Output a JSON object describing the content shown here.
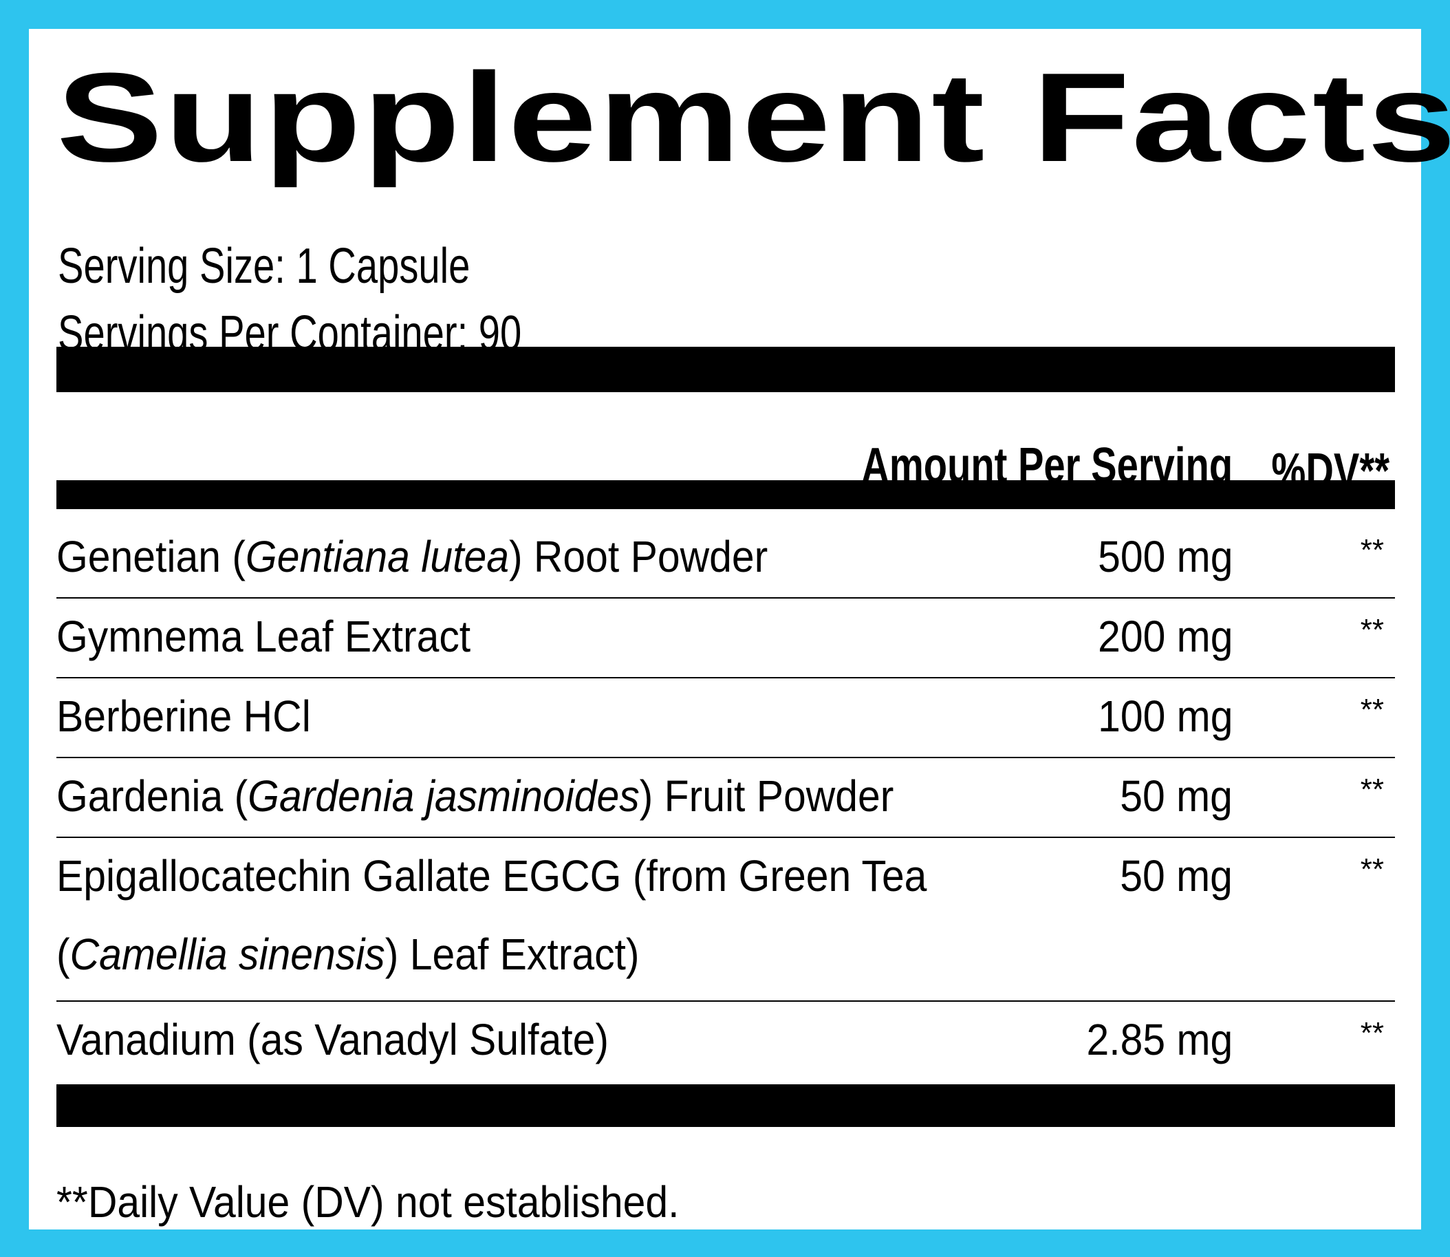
{
  "label": {
    "title": "Supplement Facts",
    "serving_size": "Serving Size: 1 Capsule",
    "servings_per_container": "Servings Per Container: 90",
    "header_amount": "Amount Per Serving",
    "header_dv": "%DV**",
    "footnote": "**Daily Value (DV) not established."
  },
  "ingredients": [
    {
      "name_before": "Genetian (",
      "name_italic": "Gentiana lutea",
      "name_after": ") Root Powder",
      "amount": "500 mg",
      "dv": "**"
    },
    {
      "name_before": "Gymnema Leaf Extract",
      "name_italic": "",
      "name_after": "",
      "amount": "200 mg",
      "dv": "**"
    },
    {
      "name_before": "Berberine HCl",
      "name_italic": "",
      "name_after": "",
      "amount": "100 mg",
      "dv": "**"
    },
    {
      "name_before": "Gardenia (",
      "name_italic": "Gardenia jasminoides",
      "name_after": ") Fruit Powder",
      "amount": "50 mg",
      "dv": "**"
    },
    {
      "name_line1": "Epigallocatechin Gallate EGCG (from Green Tea",
      "name_before": "(",
      "name_italic": "Camellia sinensis",
      "name_after": ") Leaf Extract)",
      "amount": "50 mg",
      "dv": "**"
    },
    {
      "name_before": "Vanadium (as Vanadyl Sulfate)",
      "name_italic": "",
      "name_after": "",
      "amount": "2.85 mg",
      "dv": "**"
    }
  ]
}
